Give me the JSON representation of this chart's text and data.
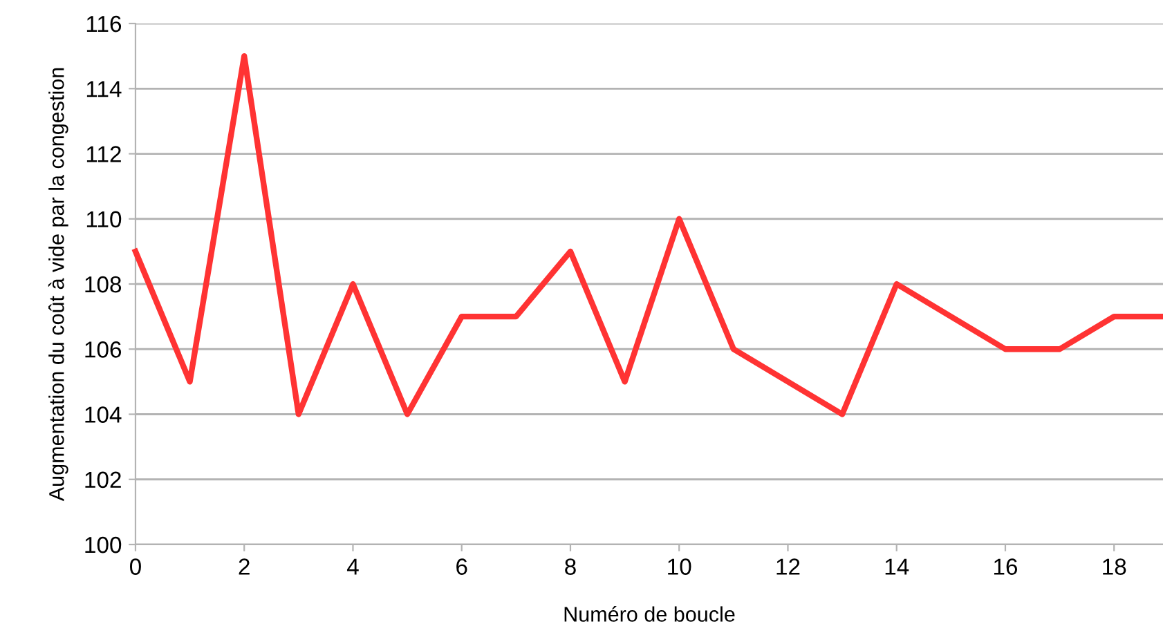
{
  "chart_data": {
    "type": "line",
    "xlabel": "Numéro de boucle",
    "ylabel": "Augmentation du coût à vide par la congestion",
    "x": [
      0,
      1,
      2,
      3,
      4,
      5,
      6,
      7,
      8,
      9,
      10,
      11,
      13,
      14,
      16,
      17,
      18,
      18.9
    ],
    "series": [
      {
        "color": "#ff3333",
        "values": [
          109,
          105,
          115,
          104,
          108,
          104,
          107,
          107,
          109,
          105,
          110,
          106,
          104,
          108,
          106,
          106,
          107,
          107
        ]
      }
    ],
    "xlim": [
      0,
      18.9
    ],
    "xticks": [
      0,
      2,
      4,
      6,
      8,
      10,
      12,
      14,
      16,
      18
    ],
    "ylim": [
      100,
      116
    ],
    "yticks": [
      100,
      102,
      104,
      106,
      108,
      110,
      112,
      114,
      116
    ],
    "grid": "y",
    "legend": false,
    "marker": "none",
    "line_style": "solid"
  }
}
